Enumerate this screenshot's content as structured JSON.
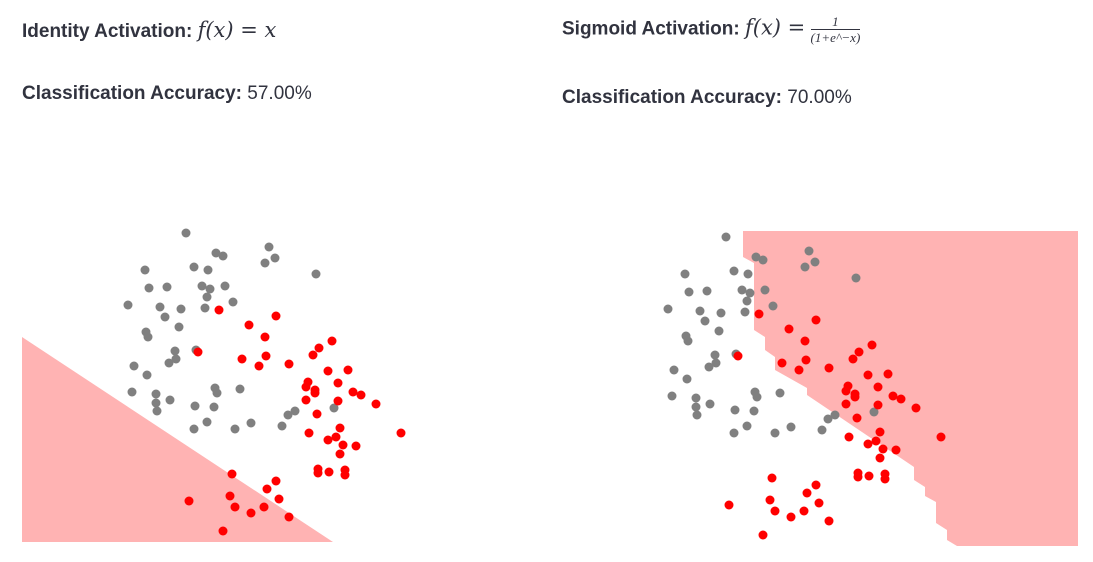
{
  "panels": [
    {
      "activation_label": "Identity Activation",
      "formula": "f(x) = x",
      "accuracy_label": "Classification Accuracy",
      "accuracy_value": "57.00%"
    },
    {
      "activation_label": "Sigmoid Activation",
      "formula_lhs": "f(x) =",
      "formula_num": "1",
      "formula_den": "(1+e^−x)",
      "accuracy_label": "Classification Accuracy",
      "accuracy_value": "70.00%"
    }
  ],
  "colors": {
    "class_0": "#808080",
    "class_1": "#ff0000",
    "region": "#ffb3b3"
  },
  "chart_data": [
    {
      "type": "scatter",
      "title": "",
      "axes_visible": false,
      "grid": false,
      "decision_region": [
        [
          0,
          205
        ],
        [
          0,
          0
        ],
        [
          311,
          0
        ]
      ],
      "series": [
        {
          "class": 0,
          "color": "#808080",
          "points": [
            [
              164,
              309
            ],
            [
              194,
              289
            ],
            [
              201,
              286
            ],
            [
              247,
              295
            ],
            [
              253,
              284
            ],
            [
              243,
              279
            ],
            [
              123,
              272
            ],
            [
              172,
              275
            ],
            [
              186,
              272
            ],
            [
              294,
              268
            ],
            [
              127,
              254
            ],
            [
              145,
              255
            ],
            [
              180,
              256
            ],
            [
              188,
              253
            ],
            [
              203,
              256
            ],
            [
              185,
              245
            ],
            [
              211,
              240
            ],
            [
              106,
              237
            ],
            [
              138,
              235
            ],
            [
              159,
              233
            ],
            [
              183,
              234
            ],
            [
              143,
              225
            ],
            [
              157,
              215
            ],
            [
              124,
              210
            ],
            [
              126,
              205
            ],
            [
              153,
              191
            ],
            [
              174,
              192
            ],
            [
              154,
              183
            ],
            [
              147,
              179
            ],
            [
              112,
              176
            ],
            [
              125,
              167
            ],
            [
              110,
              150
            ],
            [
              134,
              148
            ],
            [
              134,
              139
            ],
            [
              135,
              131
            ],
            [
              148,
              142
            ],
            [
              193,
              154
            ],
            [
              195,
              149
            ],
            [
              218,
              153
            ],
            [
              173,
              136
            ],
            [
              192,
              135
            ],
            [
              185,
              120
            ],
            [
              172,
              113
            ],
            [
              213,
              113
            ],
            [
              229,
              119
            ],
            [
              260,
              116
            ],
            [
              266,
              127
            ],
            [
              273,
              131
            ],
            [
              312,
              134
            ]
          ]
        },
        {
          "class": 1,
          "color": "#ff0000",
          "points": [
            [
              197,
              232
            ],
            [
              227,
              217
            ],
            [
              254,
              226
            ],
            [
              243,
              205
            ],
            [
              176,
              190
            ],
            [
              220,
              183
            ],
            [
              244,
              186
            ],
            [
              237,
              176
            ],
            [
              267,
              178
            ],
            [
              297,
              194
            ],
            [
              291,
              187
            ],
            [
              310,
              201
            ],
            [
              306,
              171
            ],
            [
              326,
              172
            ],
            [
              286,
              160
            ],
            [
              284,
              155
            ],
            [
              293,
              152
            ],
            [
              293,
              149
            ],
            [
              316,
              159
            ],
            [
              331,
              150
            ],
            [
              339,
              147
            ],
            [
              354,
              138
            ],
            [
              284,
              142
            ],
            [
              316,
              141
            ],
            [
              295,
              128
            ],
            [
              379,
              109
            ],
            [
              287,
              109
            ],
            [
              318,
              114
            ],
            [
              306,
              102
            ],
            [
              314,
              105
            ],
            [
              321,
              97
            ],
            [
              334,
              96
            ],
            [
              318,
              88
            ],
            [
              296,
              73
            ],
            [
              296,
              69
            ],
            [
              307,
              70
            ],
            [
              323,
              72
            ],
            [
              323,
              67
            ],
            [
              210,
              68
            ],
            [
              254,
              61
            ],
            [
              245,
              53
            ],
            [
              257,
              43
            ],
            [
              167,
              41
            ],
            [
              208,
              46
            ],
            [
              213,
              35
            ],
            [
              229,
              29
            ],
            [
              242,
              35
            ],
            [
              267,
              25
            ],
            [
              201,
              11
            ]
          ]
        }
      ]
    },
    {
      "type": "scatter",
      "title": "",
      "axes_visible": false,
      "grid": false,
      "decision_region": [
        [
          181,
          315
        ],
        [
          181,
          289
        ],
        [
          192,
          283
        ],
        [
          192,
          216
        ],
        [
          203,
          209
        ],
        [
          203,
          196
        ],
        [
          213,
          189
        ],
        [
          213,
          176
        ],
        [
          245,
          158
        ],
        [
          245,
          151
        ],
        [
          352,
          79
        ],
        [
          352,
          66
        ],
        [
          363,
          59
        ],
        [
          363,
          50
        ],
        [
          374,
          44
        ],
        [
          374,
          23
        ],
        [
          385,
          16
        ],
        [
          385,
          6
        ],
        [
          395,
          0
        ],
        [
          516,
          0
        ],
        [
          516,
          315
        ]
      ],
      "series": "same as panel 1"
    }
  ]
}
